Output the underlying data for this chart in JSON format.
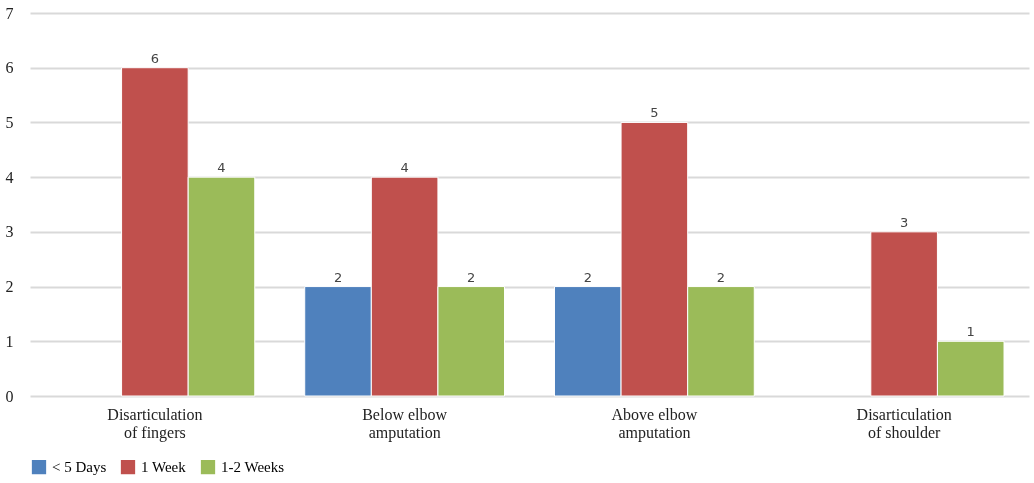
{
  "chart_data": {
    "type": "bar",
    "categories": [
      "Disarticulation\nof fingers",
      "Below elbow\namputation",
      "Above elbow\namputation",
      "Disarticulation\nof shoulder"
    ],
    "series": [
      {
        "name": "< 5 Days",
        "color": "#4f81bd",
        "values": [
          null,
          2,
          2,
          null
        ]
      },
      {
        "name": "1 Week",
        "color": "#c0504d",
        "values": [
          6,
          4,
          5,
          3
        ]
      },
      {
        "name": "1-2 Weeks",
        "color": "#9bbb59",
        "values": [
          4,
          2,
          2,
          1
        ]
      }
    ],
    "ylim": [
      0,
      7
    ],
    "yticks": [
      0,
      1,
      2,
      3,
      4,
      5,
      6,
      7
    ],
    "grid": "y",
    "legend": "bottom",
    "data_labels": true
  }
}
